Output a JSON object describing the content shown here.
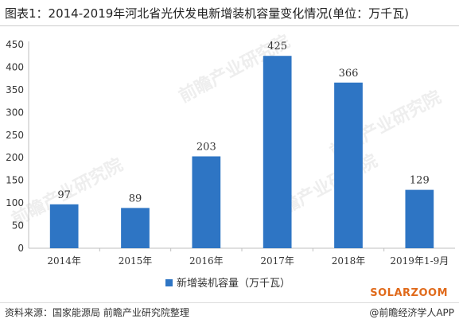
{
  "header": {
    "title": "图表1：2014-2019年河北省光伏发电新增装机容量变化情况(单位：万千瓦)"
  },
  "footer": {
    "source": "资料来源：国家能源局 前瞻产业研究院整理",
    "brand": "@前瞻经济学人APP",
    "watermark_logo": "SOLARZOOM",
    "watermark_text": "前瞻产业研究院"
  },
  "colors": {
    "bar": "#2e75c4",
    "axis": "#bfbfbf",
    "text": "#333333",
    "watermark": "#eeeeee",
    "logo": "#e06a1b"
  },
  "chart_data": {
    "type": "bar",
    "title": "",
    "xlabel": "",
    "ylabel": "",
    "categories": [
      "2014年",
      "2015年",
      "2016年",
      "2017年",
      "2018年",
      "2019年1-9月"
    ],
    "series": [
      {
        "name": "新增装机容量（万千瓦）",
        "values": [
          97,
          89,
          203,
          425,
          366,
          129
        ]
      }
    ],
    "data_labels": [
      "97",
      "89",
      "203",
      "425",
      "366",
      "129"
    ],
    "yticks": [
      0,
      50,
      100,
      150,
      200,
      250,
      300,
      350,
      400,
      450
    ],
    "ylim": [
      0,
      450
    ],
    "grid": false,
    "legend_position": "bottom-center"
  }
}
